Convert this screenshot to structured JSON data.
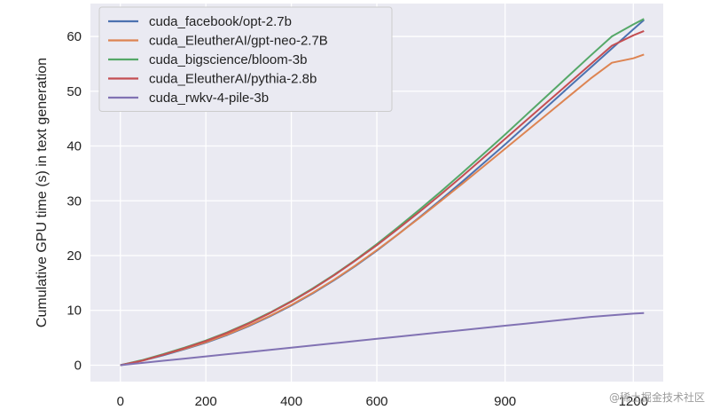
{
  "chart_data": {
    "type": "line",
    "ylabel": "Cumulative GPU time (s) in text generation",
    "xlabel": "",
    "xlim": [
      -70,
      1270
    ],
    "ylim": [
      -3,
      66
    ],
    "x_ticks": [
      {
        "value": 0,
        "label": "0"
      },
      {
        "value": 200,
        "label": "200"
      },
      {
        "value": 400,
        "label": "400"
      },
      {
        "value": 600,
        "label": "600"
      },
      {
        "value": 900,
        "label": "900"
      },
      {
        "value": 1200,
        "label": "1200"
      }
    ],
    "y_ticks": [
      0,
      10,
      20,
      30,
      40,
      50,
      60
    ],
    "grid": true,
    "legend_position": "top-left",
    "x": [
      0,
      50,
      100,
      150,
      200,
      250,
      300,
      350,
      400,
      450,
      500,
      550,
      600,
      650,
      700,
      750,
      800,
      850,
      900,
      950,
      1000,
      1050,
      1100,
      1150,
      1200,
      1225
    ],
    "series": [
      {
        "name": "cuda_facebook/opt-2.7b",
        "color": "#4c72b0",
        "values": [
          0,
          0.8,
          1.8,
          2.9,
          4.1,
          5.5,
          7.1,
          8.9,
          10.9,
          13.1,
          15.5,
          18.1,
          20.9,
          23.9,
          27.0,
          30.2,
          33.5,
          36.9,
          40.3,
          43.8,
          47.3,
          50.8,
          54.3,
          57.8,
          61.3,
          63.0
        ]
      },
      {
        "name": "cuda_EleutherAI/gpt-neo-2.7B",
        "color": "#dd8452",
        "values": [
          0,
          0.8,
          1.9,
          3.0,
          4.2,
          5.6,
          7.2,
          9.0,
          11.0,
          13.2,
          15.6,
          18.2,
          21.0,
          23.9,
          26.9,
          30.0,
          33.1,
          36.3,
          39.5,
          42.7,
          45.9,
          49.1,
          52.3,
          55.2,
          56.0,
          56.7
        ]
      },
      {
        "name": "cuda_bigscience/bloom-3b",
        "color": "#55a868",
        "values": [
          0,
          0.9,
          2.0,
          3.2,
          4.5,
          6.0,
          7.7,
          9.6,
          11.7,
          14.0,
          16.5,
          19.2,
          22.1,
          25.2,
          28.4,
          31.7,
          35.1,
          38.6,
          42.1,
          45.7,
          49.3,
          52.9,
          56.5,
          60.0,
          62.2,
          63.2
        ]
      },
      {
        "name": "cuda_EleutherAI/pythia-2.8b",
        "color": "#c44e52",
        "values": [
          0,
          0.8,
          1.9,
          3.1,
          4.4,
          5.9,
          7.6,
          9.5,
          11.6,
          13.9,
          16.4,
          19.1,
          21.9,
          24.9,
          28.0,
          31.2,
          34.5,
          37.9,
          41.3,
          44.7,
          48.1,
          51.5,
          54.9,
          58.3,
          60.2,
          61.0
        ]
      },
      {
        "name": "cuda_rwkv-4-pile-3b",
        "color": "#8172b3",
        "values": [
          0,
          0.4,
          0.8,
          1.2,
          1.6,
          2.0,
          2.4,
          2.8,
          3.2,
          3.6,
          4.0,
          4.4,
          4.8,
          5.2,
          5.6,
          6.0,
          6.4,
          6.8,
          7.2,
          7.6,
          8.0,
          8.4,
          8.8,
          9.1,
          9.4,
          9.5
        ]
      }
    ]
  },
  "watermark": "@稀土掘金技术社区"
}
